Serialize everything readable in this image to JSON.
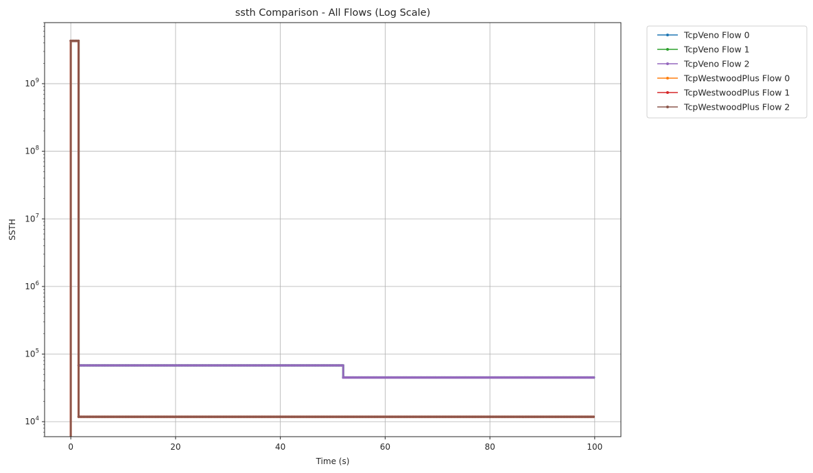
{
  "chart_data": {
    "type": "line",
    "title": "ssth Comparison - All Flows (Log Scale)",
    "xlabel": "Time (s)",
    "ylabel": "SSTH",
    "x_scale": "linear",
    "y_scale": "log",
    "xlim": [
      -5,
      105
    ],
    "ylim": [
      6000,
      8000000000
    ],
    "x_ticks": [
      0,
      20,
      40,
      60,
      80,
      100
    ],
    "x_tick_labels": [
      "0",
      "20",
      "40",
      "60",
      "80",
      "100"
    ],
    "y_ticks": [
      10000,
      100000,
      1000000,
      10000000,
      100000000,
      1000000000
    ],
    "y_tick_labels": [
      {
        "base": "10",
        "exp": "4"
      },
      {
        "base": "10",
        "exp": "5"
      },
      {
        "base": "10",
        "exp": "6"
      },
      {
        "base": "10",
        "exp": "7"
      },
      {
        "base": "10",
        "exp": "8"
      },
      {
        "base": "10",
        "exp": "9"
      }
    ],
    "grid": true,
    "legend_position": "outside-upper-right",
    "series": [
      {
        "name": "TcpVeno Flow 0",
        "color": "#1f77b4",
        "step": "post",
        "points": [
          [
            0,
            4294967295
          ],
          [
            1.5,
            4294967295
          ],
          [
            1.5,
            68000
          ],
          [
            52,
            68000
          ],
          [
            52,
            45000
          ],
          [
            100,
            45000
          ]
        ]
      },
      {
        "name": "TcpVeno Flow 1",
        "color": "#2ca02c",
        "step": "post",
        "points": [
          [
            0,
            4294967295
          ],
          [
            1.5,
            4294967295
          ],
          [
            1.5,
            68000
          ],
          [
            52,
            68000
          ],
          [
            52,
            45000
          ],
          [
            100,
            45000
          ]
        ]
      },
      {
        "name": "TcpVeno Flow 2",
        "color": "#9467bd",
        "step": "post",
        "points": [
          [
            0,
            4294967295
          ],
          [
            1.5,
            4294967295
          ],
          [
            1.5,
            68000
          ],
          [
            52,
            68000
          ],
          [
            52,
            45000
          ],
          [
            100,
            45000
          ]
        ]
      },
      {
        "name": "TcpWestwoodPlus Flow 0",
        "color": "#ff7f0e",
        "step": "post",
        "points": [
          [
            0,
            2000
          ],
          [
            0,
            4294967295
          ],
          [
            1.5,
            4294967295
          ],
          [
            1.5,
            11800
          ],
          [
            100,
            11800
          ]
        ]
      },
      {
        "name": "TcpWestwoodPlus Flow 1",
        "color": "#d62728",
        "step": "post",
        "points": [
          [
            0,
            2000
          ],
          [
            0,
            4294967295
          ],
          [
            1.5,
            4294967295
          ],
          [
            1.5,
            11800
          ],
          [
            100,
            11800
          ]
        ]
      },
      {
        "name": "TcpWestwoodPlus Flow 2",
        "color": "#8c564b",
        "step": "post",
        "points": [
          [
            0,
            2000
          ],
          [
            0,
            4294967295
          ],
          [
            1.5,
            4294967295
          ],
          [
            1.5,
            11800
          ],
          [
            100,
            11800
          ]
        ]
      }
    ]
  }
}
